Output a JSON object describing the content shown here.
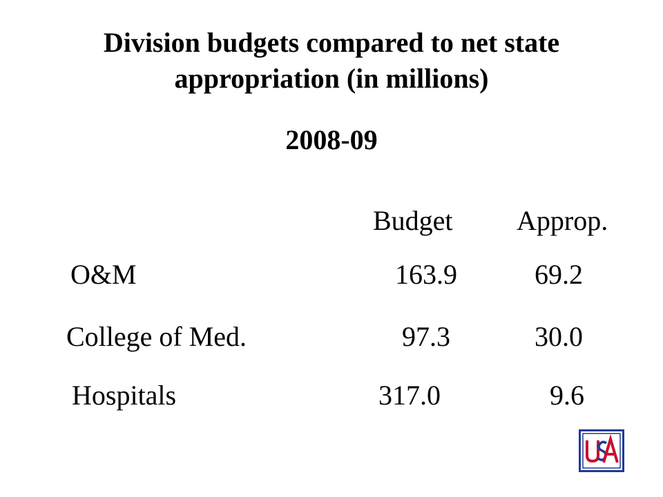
{
  "title": {
    "line1": "Division budgets compared to net state",
    "line2": "appropriation (in millions)"
  },
  "subtitle": "2008-09",
  "table": {
    "headers": [
      "Budget",
      "Approp."
    ],
    "rows": [
      {
        "label": "O&M",
        "budget": "163.9",
        "approp": "69.2"
      },
      {
        "label": "College of Med.",
        "budget": "97.3",
        "approp": "30.0"
      },
      {
        "label": "Hospitals",
        "budget": "317.0",
        "approp": "9.6"
      }
    ]
  },
  "logo": {
    "text": "USA",
    "colors": {
      "red": "#c8102e",
      "blue": "#1f3a93"
    }
  }
}
